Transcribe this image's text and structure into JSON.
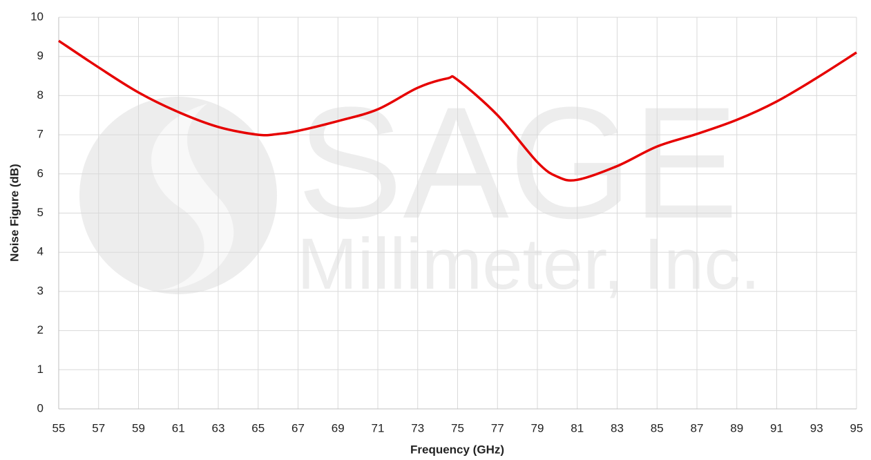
{
  "chart_data": {
    "type": "line",
    "xlabel": "Frequency (GHz)",
    "ylabel": "Noise Figure (dB)",
    "watermark": {
      "brand": "SAGE",
      "company": "Millimeter, Inc."
    },
    "x": [
      55,
      57,
      59,
      61,
      63,
      65,
      66,
      67,
      69,
      71,
      73,
      74.5,
      75,
      77,
      79,
      80,
      81,
      83,
      85,
      87,
      89,
      91,
      93,
      95
    ],
    "series": [
      {
        "name": "Noise Figure",
        "color": "#e60000",
        "values": [
          9.4,
          8.72,
          8.08,
          7.58,
          7.2,
          7.0,
          7.02,
          7.1,
          7.35,
          7.65,
          8.2,
          8.44,
          8.4,
          7.5,
          6.3,
          5.93,
          5.85,
          6.2,
          6.7,
          7.02,
          7.38,
          7.85,
          8.45,
          9.1
        ]
      }
    ],
    "xlim": [
      55,
      95
    ],
    "xticks": [
      55,
      57,
      59,
      61,
      63,
      65,
      67,
      69,
      71,
      73,
      75,
      77,
      79,
      81,
      83,
      85,
      87,
      89,
      91,
      93,
      95
    ],
    "ylim": [
      0,
      10
    ],
    "yticks": [
      0,
      1,
      2,
      3,
      4,
      5,
      6,
      7,
      8,
      9,
      10
    ],
    "grid": true
  }
}
